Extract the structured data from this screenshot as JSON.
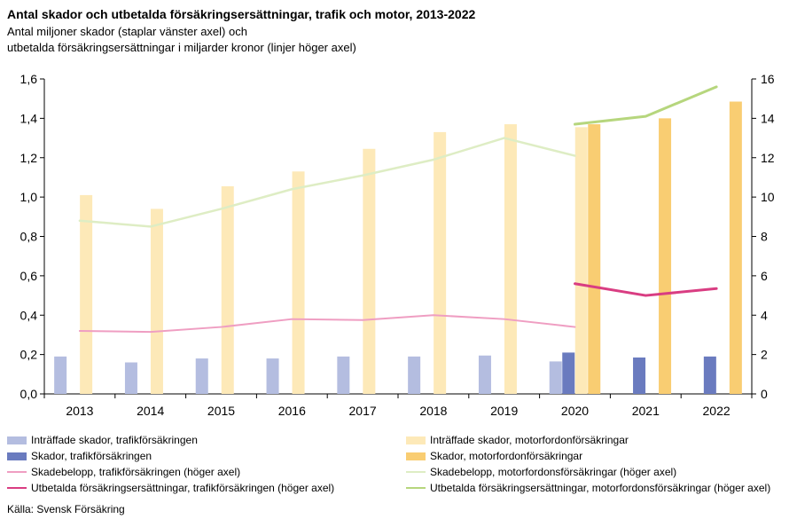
{
  "chart_data": {
    "type": "bar",
    "title": "Antal skador och utbetalda försäkringsersättningar, trafik och motor, 2013-2022",
    "subtitle_line1": "Antal miljoner skador (staplar vänster axel) och",
    "subtitle_line2": "utbetalda försäkringsersättningar i miljarder kronor (linjer höger axel)",
    "categories": [
      "2013",
      "2014",
      "2015",
      "2016",
      "2017",
      "2018",
      "2019",
      "2020",
      "2021",
      "2022"
    ],
    "left_axis": {
      "range": [
        0,
        1.6
      ],
      "ticks": [
        "0,0",
        "0,2",
        "0,4",
        "0,6",
        "0,8",
        "1,0",
        "1,2",
        "1,4",
        "1,6"
      ]
    },
    "right_axis": {
      "range": [
        0,
        16
      ],
      "ticks": [
        "0",
        "2",
        "4",
        "6",
        "8",
        "10",
        "12",
        "14",
        "16"
      ]
    },
    "grid": false,
    "legend_position": "bottom",
    "bar_series": [
      {
        "name": "Inträffade skador, trafikförsäkringen",
        "color": "#b4bde0",
        "slot": 0,
        "values": [
          0.19,
          0.16,
          0.18,
          0.18,
          0.19,
          0.19,
          0.195,
          0.165,
          null,
          null
        ]
      },
      {
        "name": "Skador, trafikförsäkringen",
        "color": "#6a7bbf",
        "slot": 1,
        "values": [
          null,
          null,
          null,
          null,
          null,
          null,
          null,
          0.21,
          0.185,
          0.19
        ]
      },
      {
        "name": "Inträffade skador, motorfordonförsäkringar",
        "color": "#fde9b8",
        "slot": 2,
        "values": [
          1.01,
          0.94,
          1.055,
          1.13,
          1.245,
          1.33,
          1.37,
          1.355,
          null,
          null
        ]
      },
      {
        "name": "Skador, motorfordonförsäkringar",
        "color": "#f9cd72",
        "slot": 3,
        "values": [
          null,
          null,
          null,
          null,
          null,
          null,
          null,
          1.37,
          1.4,
          1.485
        ]
      }
    ],
    "line_series": [
      {
        "name": "Skadebelopp, trafikförsäkringen (höger axel)",
        "color": "#ef9ec2",
        "width": 2,
        "values": [
          3.2,
          3.15,
          3.4,
          3.8,
          3.75,
          4.0,
          3.8,
          3.4,
          null,
          null
        ]
      },
      {
        "name": "Skadebelopp, motorfordonsförsäkringar (höger axel)",
        "color": "#deedc4",
        "width": 2.5,
        "values": [
          8.8,
          8.5,
          9.4,
          10.4,
          11.1,
          11.9,
          13.0,
          12.1,
          null,
          null
        ]
      },
      {
        "name": "Utbetalda försäkringsersättningar, trafikförsäkringen  (höger axel)",
        "color": "#d93d82",
        "width": 3,
        "values": [
          null,
          null,
          null,
          null,
          null,
          null,
          null,
          5.6,
          5.0,
          5.35
        ]
      },
      {
        "name": "Utbetalda försäkringsersättningar, motorfordonsförsäkringar (höger axel)",
        "color": "#b6d67d",
        "width": 3,
        "values": [
          null,
          null,
          null,
          null,
          null,
          null,
          null,
          13.7,
          14.1,
          15.6
        ]
      }
    ],
    "legend": [
      {
        "label": "Inträffade skador, trafikförsäkringen",
        "kind": "bar",
        "color": "#b4bde0"
      },
      {
        "label": "Inträffade skador, motorfordonförsäkringar",
        "kind": "bar",
        "color": "#fde9b8"
      },
      {
        "label": "Skador, trafikförsäkringen",
        "kind": "bar",
        "color": "#6a7bbf"
      },
      {
        "label": "Skador, motorfordonförsäkringar",
        "kind": "bar",
        "color": "#f9cd72"
      },
      {
        "label": "Skadebelopp, trafikförsäkringen (höger axel)",
        "kind": "line",
        "color": "#ef9ec2"
      },
      {
        "label": "Skadebelopp, motorfordonsförsäkringar (höger axel)",
        "kind": "line",
        "color": "#deedc4"
      },
      {
        "label": "Utbetalda försäkringsersättningar, trafikförsäkringen  (höger axel)",
        "kind": "line",
        "color": "#d93d82"
      },
      {
        "label": "Utbetalda försäkringsersättningar, motorfordonsförsäkringar (höger axel)",
        "kind": "line",
        "color": "#b6d67d"
      }
    ],
    "source": "Källa: Svensk Försäkring"
  }
}
